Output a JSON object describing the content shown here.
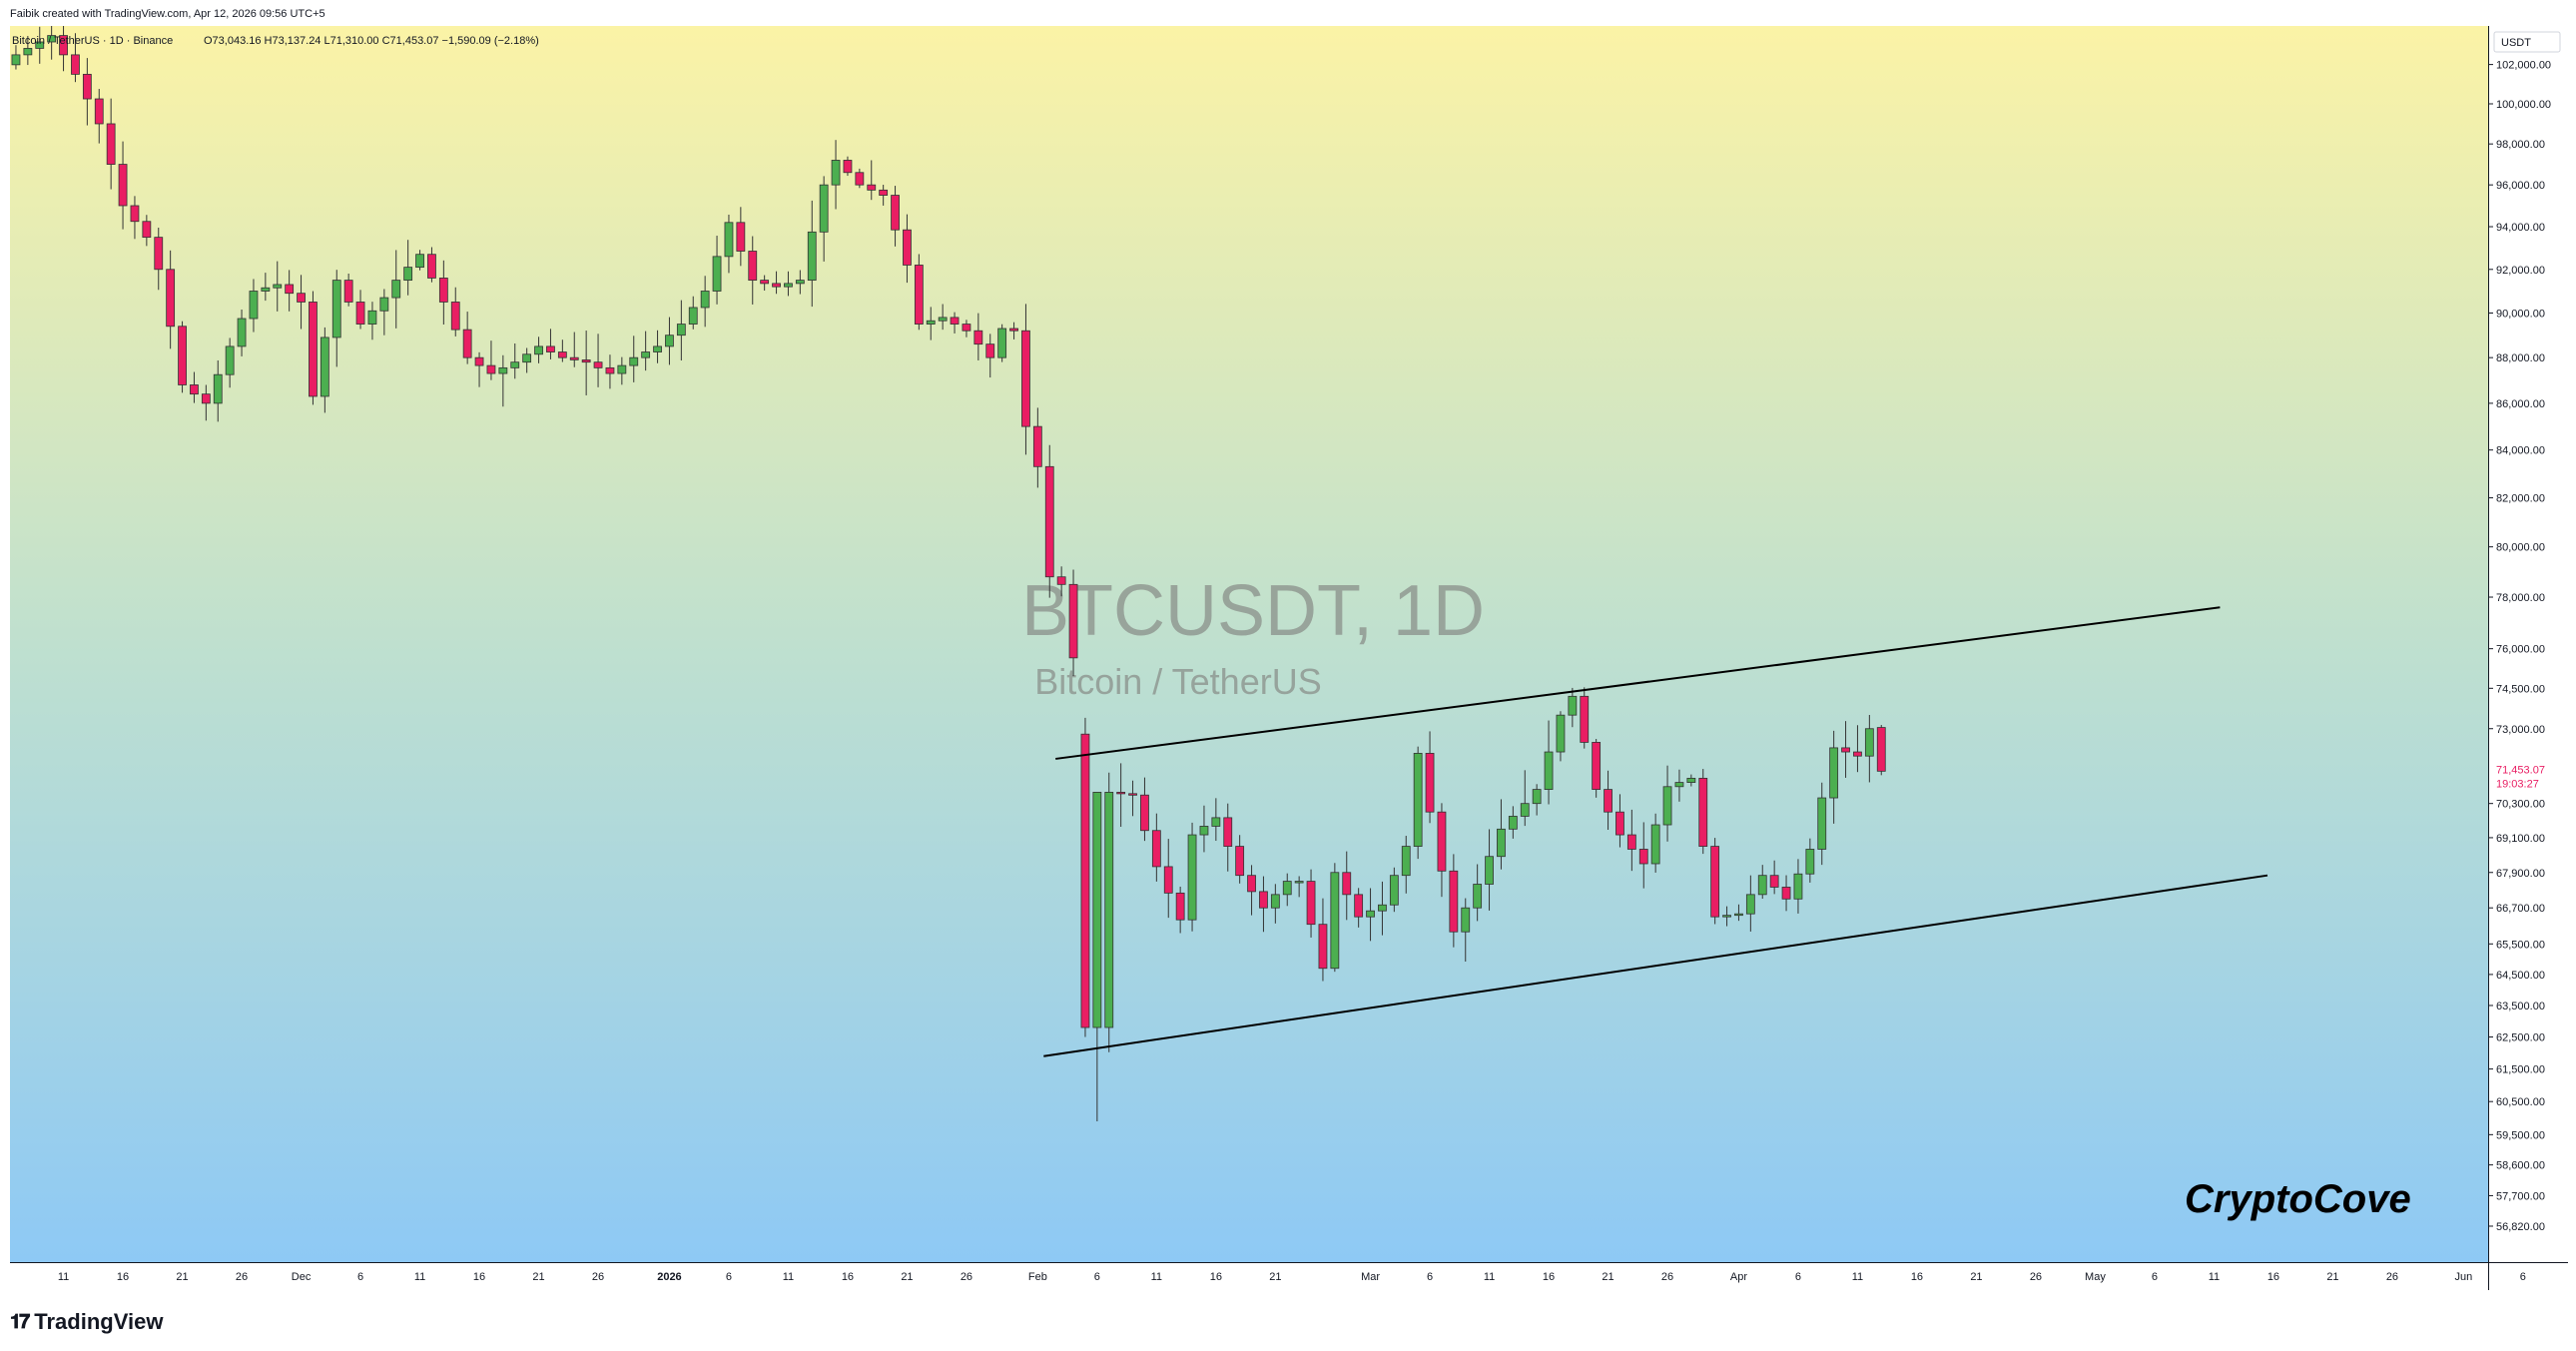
{
  "header": {
    "attribution": "Faibik created with TradingView.com, Apr 12, 2026 09:56 UTC+5"
  },
  "legend": {
    "symbol_line": "Bitcoin / TetherUS · 1D · Binance",
    "ohlc": "O73,043.16  H73,137.24  L71,310.00  C71,453.07  −1,590.09 (−2.18%)"
  },
  "watermark": {
    "symbol": "BTCUSDT, 1D",
    "description": "Bitcoin / TetherUS"
  },
  "currency_badge": "USDT",
  "price_label": {
    "price": "71,453.07",
    "countdown": "19:03:27"
  },
  "brand_text": "CryptoCove",
  "footer": {
    "logo_mark": "𝟏𝟕",
    "logo_text": "TradingView"
  },
  "colors": {
    "up": "#4caf50",
    "down": "#e91e63",
    "bg_top": "#fbf3a6",
    "bg_bottom": "#8ec9f5",
    "line": "#000000"
  },
  "chart_data": {
    "type": "candlestick",
    "interval": "1D",
    "y_scale": "log",
    "ylim": [
      55800,
      104000
    ],
    "y_ticks": [
      "102,000.00",
      "100,000.00",
      "98,000.00",
      "96,000.00",
      "94,000.00",
      "92,000.00",
      "90,000.00",
      "88,000.00",
      "86,000.00",
      "84,000.00",
      "82,000.00",
      "80,000.00",
      "78,000.00",
      "76,000.00",
      "74,500.00",
      "73,000.00",
      "70,300.00",
      "69,100.00",
      "67,900.00",
      "66,700.00",
      "65,500.00",
      "64,500.00",
      "63,500.00",
      "62,500.00",
      "61,500.00",
      "60,500.00",
      "59,500.00",
      "58,600.00",
      "57,700.00",
      "56,820.00"
    ],
    "x_labels": [
      {
        "i": 4,
        "label": "11"
      },
      {
        "i": 9,
        "label": "16"
      },
      {
        "i": 14,
        "label": "21"
      },
      {
        "i": 19,
        "label": "26"
      },
      {
        "i": 24,
        "label": "Dec"
      },
      {
        "i": 29,
        "label": "6"
      },
      {
        "i": 34,
        "label": "11"
      },
      {
        "i": 39,
        "label": "16"
      },
      {
        "i": 44,
        "label": "21"
      },
      {
        "i": 49,
        "label": "26"
      },
      {
        "i": 55,
        "label": "2026"
      },
      {
        "i": 60,
        "label": "6"
      },
      {
        "i": 65,
        "label": "11"
      },
      {
        "i": 70,
        "label": "16"
      },
      {
        "i": 75,
        "label": "21"
      },
      {
        "i": 80,
        "label": "26"
      },
      {
        "i": 86,
        "label": "Feb"
      },
      {
        "i": 91,
        "label": "6"
      },
      {
        "i": 96,
        "label": "11"
      },
      {
        "i": 101,
        "label": "16"
      },
      {
        "i": 106,
        "label": "21"
      },
      {
        "i": 114,
        "label": "Mar"
      },
      {
        "i": 119,
        "label": "6"
      },
      {
        "i": 124,
        "label": "11"
      },
      {
        "i": 129,
        "label": "16"
      },
      {
        "i": 134,
        "label": "21"
      },
      {
        "i": 139,
        "label": "26"
      },
      {
        "i": 145,
        "label": "Apr"
      },
      {
        "i": 150,
        "label": "6"
      },
      {
        "i": 155,
        "label": "11"
      },
      {
        "i": 160,
        "label": "16"
      },
      {
        "i": 165,
        "label": "21"
      },
      {
        "i": 170,
        "label": "26"
      },
      {
        "i": 175,
        "label": "May"
      },
      {
        "i": 180,
        "label": "6"
      },
      {
        "i": 185,
        "label": "11"
      },
      {
        "i": 190,
        "label": "16"
      },
      {
        "i": 195,
        "label": "21"
      },
      {
        "i": 200,
        "label": "26"
      },
      {
        "i": 206,
        "label": "Jun"
      },
      {
        "i": 211,
        "label": "6"
      }
    ],
    "slots": 212,
    "anchors": [
      [
        0,
        102500
      ],
      [
        3,
        103500
      ],
      [
        5,
        101500
      ],
      [
        7,
        99000
      ],
      [
        9,
        95000
      ],
      [
        11,
        93500
      ],
      [
        12,
        92000
      ],
      [
        14,
        86800
      ],
      [
        16,
        86000
      ],
      [
        18,
        88500
      ],
      [
        20,
        91000
      ],
      [
        22,
        91300
      ],
      [
        24,
        90500
      ],
      [
        25,
        86300
      ],
      [
        27,
        91500
      ],
      [
        29,
        89500
      ],
      [
        31,
        90700
      ],
      [
        32,
        91500
      ],
      [
        34,
        92700
      ],
      [
        36,
        90500
      ],
      [
        38,
        88000
      ],
      [
        40,
        87300
      ],
      [
        42,
        87800
      ],
      [
        44,
        88500
      ],
      [
        46,
        88000
      ],
      [
        48,
        87800
      ],
      [
        50,
        87300
      ],
      [
        52,
        88000
      ],
      [
        54,
        88500
      ],
      [
        56,
        89500
      ],
      [
        58,
        91000
      ],
      [
        60,
        94200
      ],
      [
        62,
        91500
      ],
      [
        64,
        91200
      ],
      [
        66,
        91500
      ],
      [
        68,
        96000
      ],
      [
        69,
        97200
      ],
      [
        71,
        96000
      ],
      [
        73,
        95500
      ],
      [
        75,
        92200
      ],
      [
        76,
        89500
      ],
      [
        78,
        89800
      ],
      [
        80,
        89200
      ],
      [
        82,
        88000
      ],
      [
        83,
        89300
      ],
      [
        84,
        89200
      ],
      [
        85,
        85000
      ],
      [
        86,
        83300
      ],
      [
        87,
        78800
      ],
      [
        88,
        78500
      ],
      [
        90,
        72800
      ],
      [
        91,
        62800
      ],
      [
        92,
        70700
      ],
      [
        94,
        70600
      ],
      [
        96,
        68100
      ],
      [
        98,
        66300
      ],
      [
        99,
        69200
      ],
      [
        101,
        69800
      ],
      [
        103,
        67800
      ],
      [
        105,
        66700
      ],
      [
        107,
        67600
      ],
      [
        108,
        67600
      ],
      [
        110,
        64700
      ],
      [
        111,
        67900
      ],
      [
        113,
        66400
      ],
      [
        115,
        66800
      ],
      [
        117,
        68800
      ],
      [
        118,
        72100
      ],
      [
        119,
        70000
      ],
      [
        121,
        65900
      ],
      [
        123,
        67500
      ],
      [
        125,
        69400
      ],
      [
        127,
        70300
      ],
      [
        128,
        70800
      ],
      [
        130,
        73500
      ],
      [
        131,
        74200
      ],
      [
        133,
        70800
      ],
      [
        135,
        69200
      ],
      [
        137,
        68200
      ],
      [
        139,
        70900
      ],
      [
        141,
        71200
      ],
      [
        143,
        66400
      ],
      [
        145,
        66500
      ],
      [
        147,
        67800
      ],
      [
        149,
        67000
      ],
      [
        151,
        68700
      ],
      [
        153,
        72300
      ],
      [
        155,
        72000
      ],
      [
        156,
        73000
      ],
      [
        157,
        71450
      ]
    ],
    "overrides": {
      "90": [
        72800,
        73400,
        62500,
        62800
      ],
      "91": [
        62800,
        70700,
        59900,
        70700
      ],
      "157": [
        73043.16,
        73137.24,
        71310,
        71453.07
      ]
    },
    "trendlines": [
      {
        "name": "channel-upper",
        "from": {
          "i": 88,
          "price": 71900
        },
        "to": {
          "i": 186,
          "price": 77600
        }
      },
      {
        "name": "channel-lower",
        "from": {
          "i": 87,
          "price": 61900
        },
        "to": {
          "i": 190,
          "price": 67800
        }
      }
    ]
  }
}
